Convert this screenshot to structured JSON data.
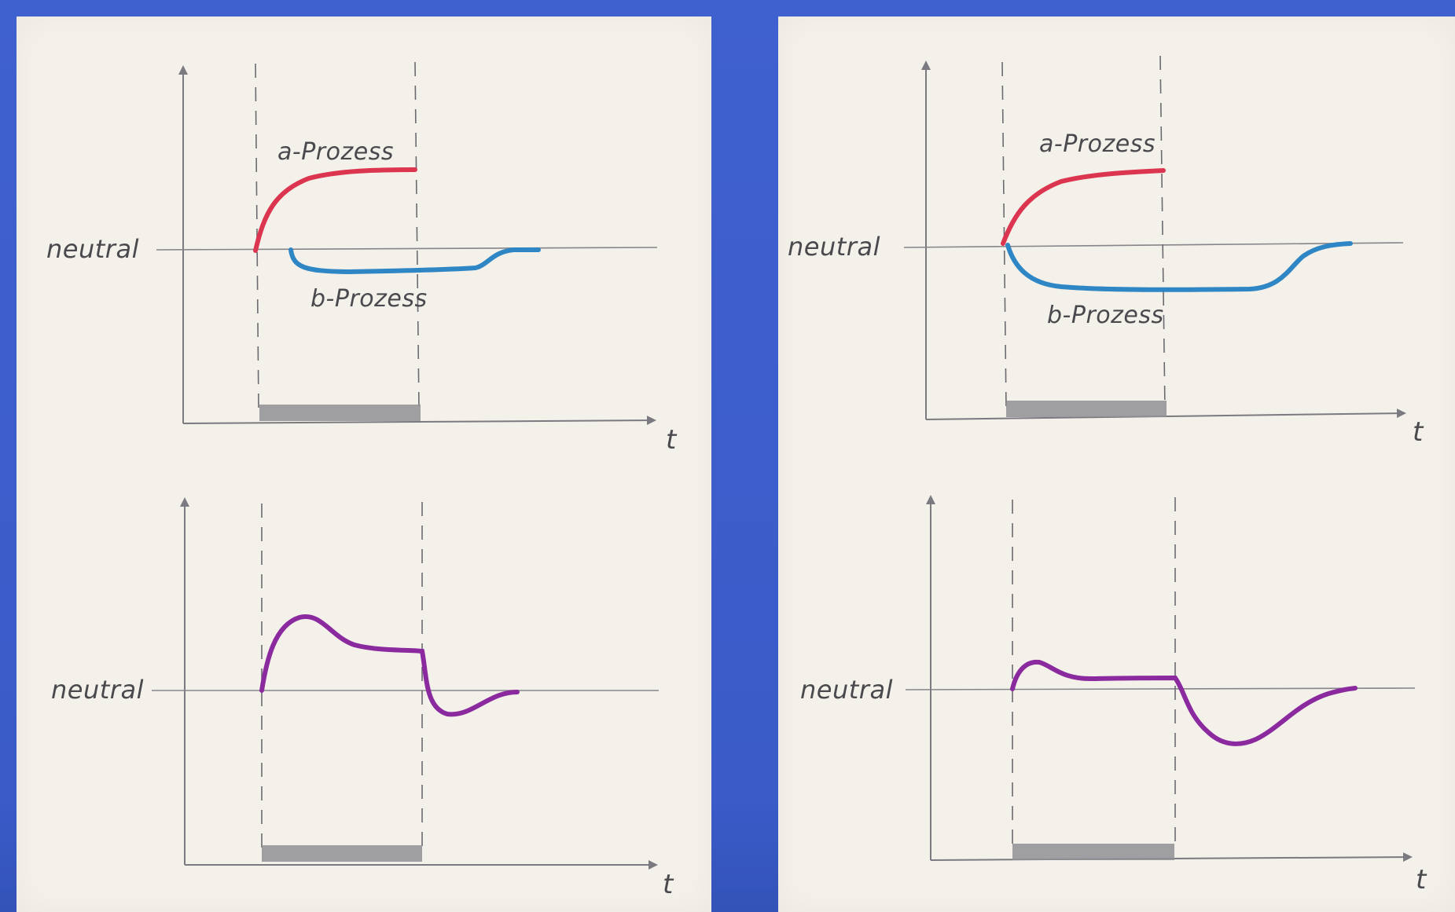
{
  "colors": {
    "background": "#3d5fcc",
    "paper": "#f4f1ea",
    "pencil": "#7a7a80",
    "a_process": "#dc3550",
    "b_process": "#2f86c4",
    "sum": "#8a2a9e",
    "stimulus_bar": "#8f8f94"
  },
  "labels": {
    "neutral": "neutral",
    "a_process": "a-Prozess",
    "b_process": "b-Prozess",
    "time_axis": "t"
  }
}
